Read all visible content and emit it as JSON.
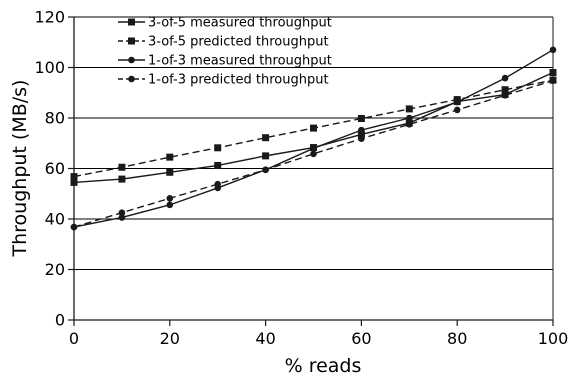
{
  "chart_data": {
    "type": "line",
    "title": "",
    "xlabel": "% reads",
    "ylabel": "Throughput (MB/s)",
    "xlim": [
      0,
      100
    ],
    "ylim": [
      0,
      120
    ],
    "x_ticks": [
      "0",
      "20",
      "40",
      "60",
      "80",
      "100"
    ],
    "y_ticks": [
      "0",
      "20",
      "40",
      "60",
      "80",
      "100",
      "120"
    ],
    "grid": "horizontal",
    "legend_position": "top-left",
    "x": [
      0,
      10,
      20,
      30,
      40,
      50,
      60,
      70,
      80,
      90,
      100
    ],
    "series": [
      {
        "name": "3-of-5 measured throughput",
        "marker": "square",
        "dash": "solid",
        "values": [
          54.5,
          55.8,
          58.5,
          61.2,
          65.0,
          68.3,
          73.5,
          78.0,
          86.5,
          89.3,
          98.0
        ]
      },
      {
        "name": "3-of-5 predicted throughput",
        "marker": "square",
        "dash": "dashed",
        "values": [
          56.8,
          60.5,
          64.5,
          68.2,
          72.2,
          76.0,
          79.8,
          83.6,
          87.3,
          91.2,
          95.0
        ]
      },
      {
        "name": "1-of-3 measured throughput",
        "marker": "circle",
        "dash": "solid",
        "values": [
          36.8,
          40.6,
          45.6,
          52.3,
          59.5,
          68.0,
          75.2,
          80.0,
          86.3,
          95.8,
          107.0
        ]
      },
      {
        "name": "1-of-3 predicted throughput",
        "marker": "circle",
        "dash": "dashed",
        "values": [
          36.8,
          42.5,
          48.2,
          53.8,
          59.5,
          65.8,
          71.8,
          77.5,
          83.2,
          89.0,
          94.8
        ]
      }
    ]
  },
  "colors": {
    "line": "#1a1a1a",
    "grid": "#000000",
    "background": "#ffffff"
  }
}
